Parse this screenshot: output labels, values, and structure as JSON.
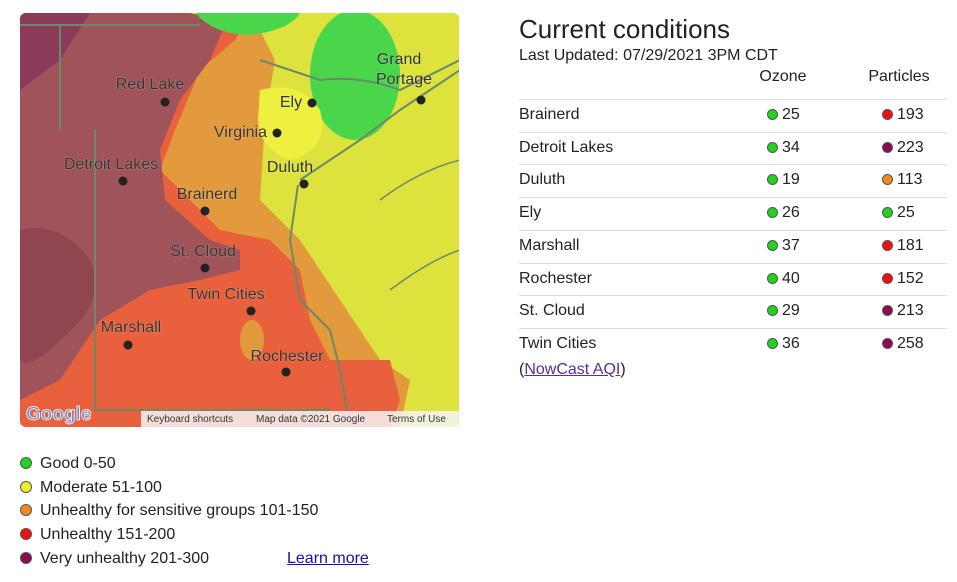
{
  "map": {
    "cities": [
      {
        "label": "Red Lake"
      },
      {
        "label": "Virginia"
      },
      {
        "label": "Ely"
      },
      {
        "label_lines": [
          "Grand",
          "Portage"
        ]
      },
      {
        "label": "Detroit Lakes"
      },
      {
        "label": "Duluth"
      },
      {
        "label": "Brainerd"
      },
      {
        "label": "St. Cloud"
      },
      {
        "label": "Twin Cities"
      },
      {
        "label": "Marshall"
      },
      {
        "label": "Rochester"
      }
    ],
    "logo": "Google",
    "attribution": [
      "Keyboard shortcuts",
      "Map data ©2021 Google",
      "Terms of Use"
    ]
  },
  "conditions": {
    "title": "Current conditions",
    "updated": "Last Updated: 07/29/2021 3PM CDT",
    "columns": [
      "Ozone",
      "Particles"
    ],
    "rows": [
      {
        "city": "Brainerd",
        "ozone": 25,
        "ozone_color": "#1fd31f",
        "particles": 193,
        "particles_color": "#ee1111"
      },
      {
        "city": "Detroit Lakes",
        "ozone": 34,
        "ozone_color": "#1fd31f",
        "particles": 223,
        "particles_color": "#8b0a50"
      },
      {
        "city": "Duluth",
        "ozone": 19,
        "ozone_color": "#1fd31f",
        "particles": 113,
        "particles_color": "#f08a1f"
      },
      {
        "city": "Ely",
        "ozone": 26,
        "ozone_color": "#1fd31f",
        "particles": 25,
        "particles_color": "#1fd31f"
      },
      {
        "city": "Marshall",
        "ozone": 37,
        "ozone_color": "#1fd31f",
        "particles": 181,
        "particles_color": "#ee1111"
      },
      {
        "city": "Rochester",
        "ozone": 40,
        "ozone_color": "#1fd31f",
        "particles": 152,
        "particles_color": "#ee1111"
      },
      {
        "city": "St. Cloud",
        "ozone": 29,
        "ozone_color": "#1fd31f",
        "particles": 213,
        "particles_color": "#8b0a50"
      },
      {
        "city": "Twin Cities",
        "ozone": 36,
        "ozone_color": "#1fd31f",
        "particles": 258,
        "particles_color": "#8b0a50"
      }
    ],
    "note_open": "(",
    "link": "NowCast AQI",
    "note_close": ")"
  },
  "legend": {
    "items": [
      {
        "label": "Good 0-50",
        "color": "#1fd31f"
      },
      {
        "label": "Moderate 51-100",
        "color": "#eeee22"
      },
      {
        "label": "Unhealthy for sensitive groups 101-150",
        "color": "#f08a1f"
      },
      {
        "label": "Unhealthy 151-200",
        "color": "#ee1111"
      },
      {
        "label": "Very unhealthy 201-300",
        "color": "#8b0a50"
      }
    ],
    "link": "Learn more"
  }
}
